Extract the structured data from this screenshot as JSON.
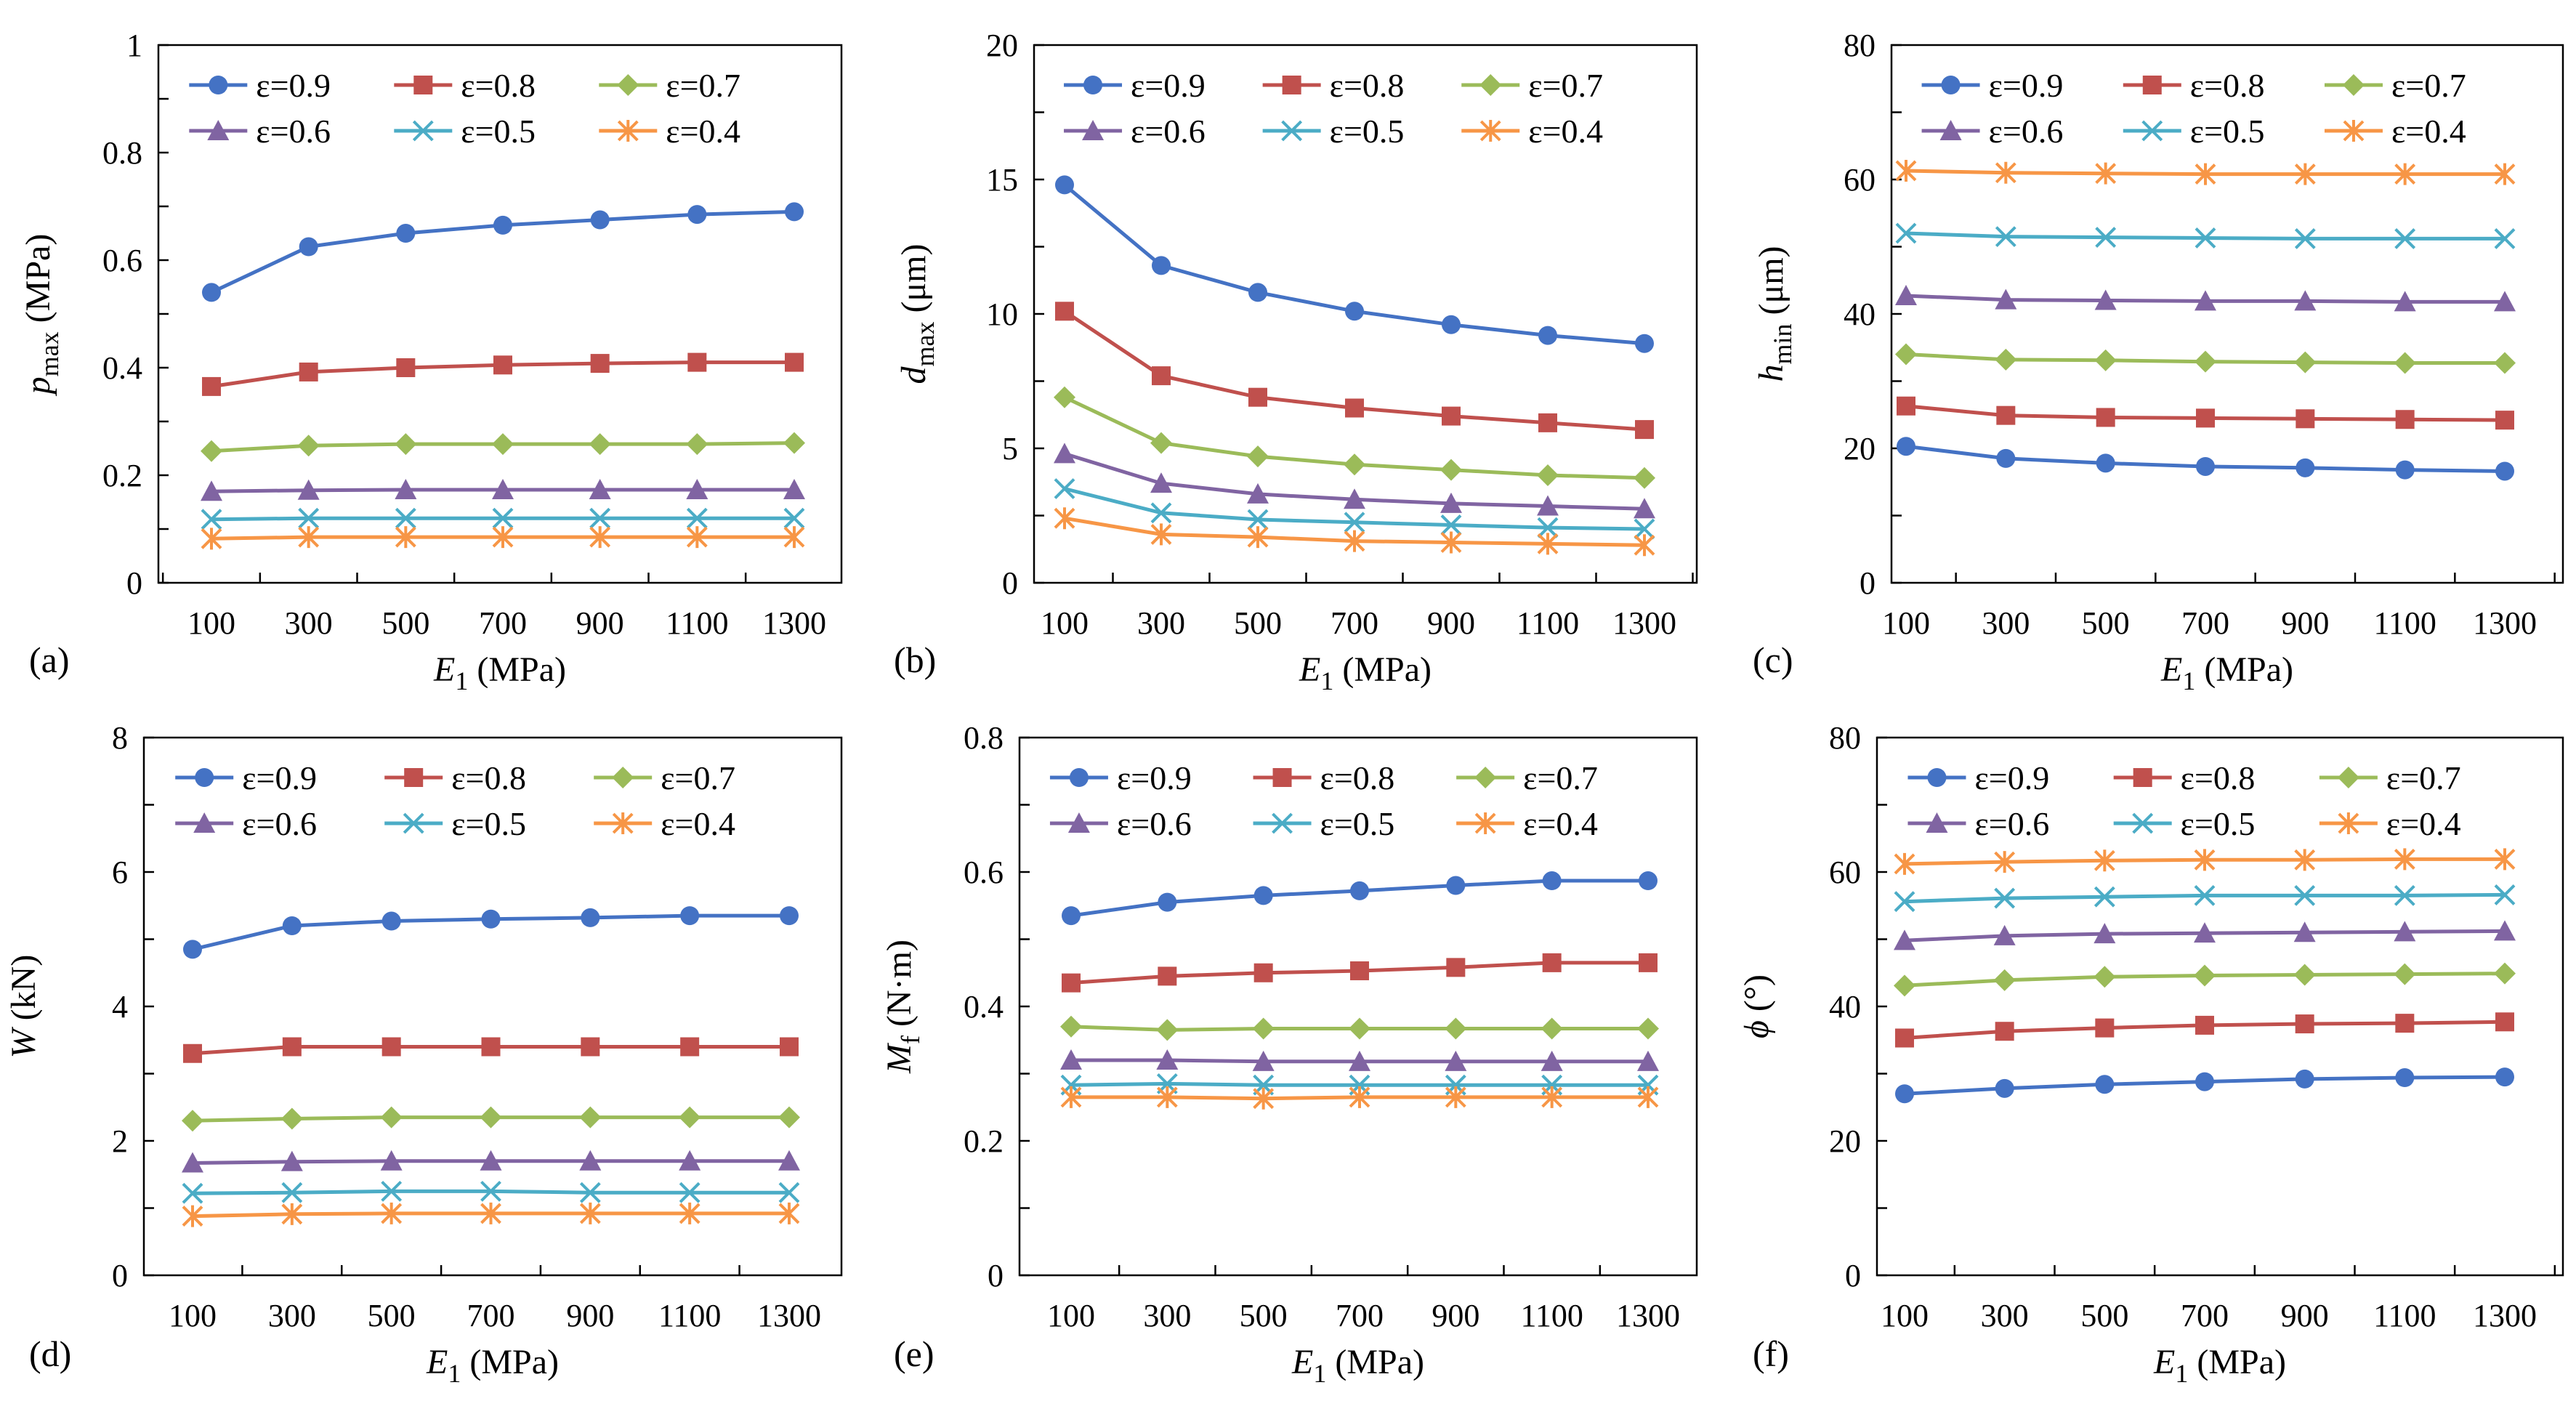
{
  "colors": {
    "series": [
      "#4472C4",
      "#C0504D",
      "#9BBB59",
      "#8064A2",
      "#4BACC6",
      "#F79646"
    ],
    "markers": [
      "circle",
      "square",
      "diamond",
      "triangle",
      "x",
      "asterisk"
    ]
  },
  "chart_data": [
    {
      "type": "line",
      "panel_label": "(a)",
      "x": [
        100,
        300,
        500,
        700,
        900,
        1100,
        1300
      ],
      "x_tick_labels": [
        "100",
        "300",
        "500",
        "700",
        "900",
        "1100",
        "1300"
      ],
      "xlabel": {
        "main": "E",
        "sub": "1",
        "unit": " (MPa)"
      },
      "ylabel": {
        "main": "p",
        "sub": "max",
        "unit": " (MPa)"
      },
      "ylim": [
        0,
        1
      ],
      "y_tick_labels": [
        "0",
        "0.2",
        "0.4",
        "0.6",
        "0.8",
        "1"
      ],
      "y_minor_step": 0.1,
      "legend": "top",
      "series": [
        {
          "name": "ε=0.9",
          "values": [
            0.54,
            0.625,
            0.65,
            0.665,
            0.675,
            0.685,
            0.69
          ]
        },
        {
          "name": "ε=0.8",
          "values": [
            0.365,
            0.392,
            0.4,
            0.405,
            0.408,
            0.41,
            0.41
          ]
        },
        {
          "name": "ε=0.7",
          "values": [
            0.245,
            0.255,
            0.258,
            0.258,
            0.258,
            0.258,
            0.26
          ]
        },
        {
          "name": "ε=0.6",
          "values": [
            0.17,
            0.172,
            0.173,
            0.173,
            0.173,
            0.173,
            0.173
          ]
        },
        {
          "name": "ε=0.5",
          "values": [
            0.118,
            0.12,
            0.12,
            0.12,
            0.12,
            0.12,
            0.12
          ]
        },
        {
          "name": "ε=0.4",
          "values": [
            0.082,
            0.085,
            0.085,
            0.085,
            0.085,
            0.085,
            0.085
          ]
        }
      ]
    },
    {
      "type": "line",
      "panel_label": "(b)",
      "x": [
        100,
        300,
        500,
        700,
        900,
        1100,
        1300
      ],
      "x_tick_labels": [
        "100",
        "300",
        "500",
        "700",
        "900",
        "1100",
        "1300"
      ],
      "xlabel": {
        "main": "E",
        "sub": "1",
        "unit": " (MPa)"
      },
      "ylabel": {
        "main": "d",
        "sub": "max",
        "unit": " (μm)"
      },
      "ylim": [
        0,
        20
      ],
      "y_tick_labels": [
        "0",
        "5",
        "10",
        "15",
        "20"
      ],
      "y_minor_step": 2.5,
      "legend": "top",
      "series": [
        {
          "name": "ε=0.9",
          "values": [
            14.8,
            11.8,
            10.8,
            10.1,
            9.6,
            9.2,
            8.9
          ]
        },
        {
          "name": "ε=0.8",
          "values": [
            10.1,
            7.7,
            6.9,
            6.5,
            6.2,
            5.95,
            5.7
          ]
        },
        {
          "name": "ε=0.7",
          "values": [
            6.9,
            5.2,
            4.7,
            4.4,
            4.2,
            4.0,
            3.9
          ]
        },
        {
          "name": "ε=0.6",
          "values": [
            4.8,
            3.7,
            3.3,
            3.1,
            2.95,
            2.85,
            2.75
          ]
        },
        {
          "name": "ε=0.5",
          "values": [
            3.5,
            2.6,
            2.35,
            2.25,
            2.15,
            2.05,
            2.0
          ]
        },
        {
          "name": "ε=0.4",
          "values": [
            2.4,
            1.8,
            1.7,
            1.55,
            1.5,
            1.45,
            1.4
          ]
        }
      ]
    },
    {
      "type": "line",
      "panel_label": "(c)",
      "x": [
        100,
        300,
        500,
        700,
        900,
        1100,
        1300
      ],
      "x_tick_labels": [
        "100",
        "300",
        "500",
        "700",
        "900",
        "1100",
        "1300"
      ],
      "xlabel": {
        "main": "E",
        "sub": "1",
        "unit": " (MPa)"
      },
      "ylabel": {
        "main": "h",
        "sub": "min",
        "unit": " (μm)"
      },
      "ylim": [
        0,
        80
      ],
      "y_tick_labels": [
        "0",
        "20",
        "40",
        "60",
        "80"
      ],
      "y_minor_step": 10,
      "legend": "top",
      "series": [
        {
          "name": "ε=0.9",
          "values": [
            20.3,
            18.5,
            17.8,
            17.3,
            17.1,
            16.8,
            16.6
          ]
        },
        {
          "name": "ε=0.8",
          "values": [
            26.3,
            24.9,
            24.6,
            24.5,
            24.4,
            24.3,
            24.2
          ]
        },
        {
          "name": "ε=0.7",
          "values": [
            34.0,
            33.2,
            33.1,
            32.9,
            32.8,
            32.7,
            32.7
          ]
        },
        {
          "name": "ε=0.6",
          "values": [
            42.7,
            42.1,
            42.0,
            41.9,
            41.9,
            41.8,
            41.8
          ]
        },
        {
          "name": "ε=0.5",
          "values": [
            52.0,
            51.5,
            51.4,
            51.3,
            51.2,
            51.2,
            51.2
          ]
        },
        {
          "name": "ε=0.4",
          "values": [
            61.3,
            61.0,
            60.9,
            60.8,
            60.8,
            60.8,
            60.8
          ]
        }
      ]
    },
    {
      "type": "line",
      "panel_label": "(d)",
      "x": [
        100,
        300,
        500,
        700,
        900,
        1100,
        1300
      ],
      "x_tick_labels": [
        "100",
        "300",
        "500",
        "700",
        "900",
        "1100",
        "1300"
      ],
      "xlabel": {
        "main": "E",
        "sub": "1",
        "unit": " (MPa)"
      },
      "ylabel": {
        "main": "W",
        "sub": "",
        "unit": " (kN)"
      },
      "ylim": [
        0,
        8
      ],
      "y_tick_labels": [
        "0",
        "2",
        "4",
        "6",
        "8"
      ],
      "y_minor_step": 1,
      "legend": "top",
      "series": [
        {
          "name": "ε=0.9",
          "values": [
            4.85,
            5.2,
            5.27,
            5.3,
            5.32,
            5.35,
            5.35
          ]
        },
        {
          "name": "ε=0.8",
          "values": [
            3.3,
            3.4,
            3.4,
            3.4,
            3.4,
            3.4,
            3.4
          ]
        },
        {
          "name": "ε=0.7",
          "values": [
            2.3,
            2.33,
            2.35,
            2.35,
            2.35,
            2.35,
            2.35
          ]
        },
        {
          "name": "ε=0.6",
          "values": [
            1.67,
            1.69,
            1.7,
            1.7,
            1.7,
            1.7,
            1.7
          ]
        },
        {
          "name": "ε=0.5",
          "values": [
            1.22,
            1.23,
            1.25,
            1.25,
            1.23,
            1.23,
            1.23
          ]
        },
        {
          "name": "ε=0.4",
          "values": [
            0.88,
            0.91,
            0.92,
            0.92,
            0.92,
            0.92,
            0.92
          ]
        }
      ]
    },
    {
      "type": "line",
      "panel_label": "(e)",
      "x": [
        100,
        300,
        500,
        700,
        900,
        1100,
        1300
      ],
      "x_tick_labels": [
        "100",
        "300",
        "500",
        "700",
        "900",
        "1100",
        "1300"
      ],
      "xlabel": {
        "main": "E",
        "sub": "1",
        "unit": " (MPa)"
      },
      "ylabel": {
        "main": "M",
        "sub": "f",
        "unit": " (N·m)"
      },
      "ylim": [
        0,
        0.8
      ],
      "y_tick_labels": [
        "0",
        "0.2",
        "0.4",
        "0.6",
        "0.8"
      ],
      "y_minor_step": 0.1,
      "legend": "top",
      "series": [
        {
          "name": "ε=0.9",
          "values": [
            0.535,
            0.555,
            0.565,
            0.572,
            0.58,
            0.587,
            0.587
          ]
        },
        {
          "name": "ε=0.8",
          "values": [
            0.435,
            0.445,
            0.45,
            0.453,
            0.458,
            0.465,
            0.465
          ]
        },
        {
          "name": "ε=0.7",
          "values": [
            0.37,
            0.365,
            0.367,
            0.367,
            0.367,
            0.367,
            0.367
          ]
        },
        {
          "name": "ε=0.6",
          "values": [
            0.32,
            0.32,
            0.318,
            0.318,
            0.318,
            0.318,
            0.318
          ]
        },
        {
          "name": "ε=0.5",
          "values": [
            0.283,
            0.285,
            0.283,
            0.283,
            0.283,
            0.283,
            0.283
          ]
        },
        {
          "name": "ε=0.4",
          "values": [
            0.265,
            0.265,
            0.263,
            0.265,
            0.265,
            0.265,
            0.265
          ]
        }
      ]
    },
    {
      "type": "line",
      "panel_label": "(f)",
      "x": [
        100,
        300,
        500,
        700,
        900,
        1100,
        1300
      ],
      "x_tick_labels": [
        "100",
        "300",
        "500",
        "700",
        "900",
        "1100",
        "1300"
      ],
      "xlabel": {
        "main": "E",
        "sub": "1",
        "unit": " (MPa)"
      },
      "ylabel": {
        "main": "ϕ",
        "sub": "",
        "unit": " (°)"
      },
      "ylim": [
        0,
        80
      ],
      "y_tick_labels": [
        "0",
        "20",
        "40",
        "60",
        "80"
      ],
      "y_minor_step": 10,
      "legend": "top",
      "series": [
        {
          "name": "ε=0.9",
          "values": [
            27.0,
            27.8,
            28.4,
            28.8,
            29.2,
            29.4,
            29.5
          ]
        },
        {
          "name": "ε=0.8",
          "values": [
            35.3,
            36.3,
            36.8,
            37.2,
            37.4,
            37.5,
            37.7
          ]
        },
        {
          "name": "ε=0.7",
          "values": [
            43.1,
            43.9,
            44.4,
            44.6,
            44.7,
            44.8,
            44.9
          ]
        },
        {
          "name": "ε=0.6",
          "values": [
            49.8,
            50.5,
            50.8,
            50.9,
            51.0,
            51.1,
            51.2
          ]
        },
        {
          "name": "ε=0.5",
          "values": [
            55.6,
            56.1,
            56.3,
            56.5,
            56.5,
            56.5,
            56.6
          ]
        },
        {
          "name": "ε=0.4",
          "values": [
            61.2,
            61.5,
            61.7,
            61.8,
            61.8,
            61.9,
            61.9
          ]
        }
      ]
    }
  ]
}
